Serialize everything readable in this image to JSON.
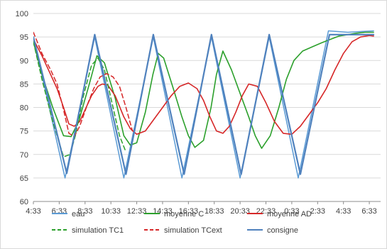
{
  "chart_data": {
    "type": "line",
    "title": "",
    "xlabel": "",
    "ylabel": "",
    "ylim": [
      60,
      100
    ],
    "yticks": [
      60,
      65,
      70,
      75,
      80,
      85,
      90,
      95,
      100
    ],
    "xlim": [
      0,
      2580
    ],
    "x_ticks": [
      {
        "x": 0,
        "label": "4:33"
      },
      {
        "x": 120,
        "label": "6:33"
      },
      {
        "x": 240,
        "label": "8:33"
      },
      {
        "x": 360,
        "label": "10:33"
      },
      {
        "x": 480,
        "label": "12:33"
      },
      {
        "x": 600,
        "label": "14:33"
      },
      {
        "x": 720,
        "label": "16:33"
      },
      {
        "x": 840,
        "label": "18:33"
      },
      {
        "x": 960,
        "label": "20:33"
      },
      {
        "x": 1080,
        "label": "22:33"
      },
      {
        "x": 1200,
        "label": "0:33"
      },
      {
        "x": 1320,
        "label": "2:33"
      },
      {
        "x": 1440,
        "label": "4:33"
      },
      {
        "x": 1560,
        "label": "6:33"
      }
    ],
    "grid": "horizontal",
    "legend_position": "bottom",
    "series": [
      {
        "name": "eau",
        "color": "#5b9bd5",
        "style": "solid",
        "width": 1.5,
        "x": [
          0,
          147,
          285,
          420,
          557,
          690,
          827,
          960,
          1095,
          1230,
          1370,
          1460,
          1530,
          1580
        ],
        "y": [
          95,
          65,
          95,
          65,
          95,
          65,
          95,
          65,
          95,
          65,
          96.3,
          96.0,
          96.2,
          96.3
        ]
      },
      {
        "name": "moyenne C",
        "color": "#2ca02c",
        "style": "solid",
        "width": 1.6,
        "x": [
          0,
          40,
          90,
          140,
          175,
          210,
          260,
          295,
          330,
          380,
          420,
          450,
          480,
          520,
          555,
          580,
          605,
          650,
          690,
          720,
          750,
          790,
          825,
          850,
          880,
          920,
          960,
          1000,
          1030,
          1060,
          1100,
          1140,
          1175,
          1210,
          1250,
          1300,
          1340,
          1380,
          1420,
          1460,
          1500,
          1540,
          1580
        ],
        "y": [
          94,
          87,
          80,
          74,
          73.8,
          77,
          85,
          91,
          89.5,
          82,
          74,
          72,
          72.5,
          79,
          87,
          91.5,
          90.5,
          84,
          78,
          74,
          71.5,
          73,
          80,
          87,
          92,
          88,
          83,
          78,
          74,
          71.3,
          74,
          80,
          86,
          90,
          92,
          93,
          93.8,
          94.5,
          95.2,
          95.5,
          95.8,
          96,
          96
        ]
      },
      {
        "name": "moyenne AD",
        "color": "#d62728",
        "style": "solid",
        "width": 1.6,
        "x": [
          0,
          40,
          80,
          110,
          140,
          165,
          190,
          215,
          240,
          270,
          300,
          320,
          345,
          380,
          420,
          450,
          480,
          520,
          560,
          600,
          640,
          680,
          720,
          760,
          790,
          820,
          850,
          880,
          910,
          940,
          970,
          1000,
          1040,
          1080,
          1120,
          1160,
          1200,
          1240,
          1280,
          1320,
          1360,
          1400,
          1440,
          1480,
          1520,
          1560,
          1580
        ],
        "y": [
          94.5,
          91,
          87,
          84,
          80,
          76.5,
          76,
          77,
          79.5,
          82.5,
          84.5,
          85,
          84.8,
          82.5,
          78,
          75.5,
          74.3,
          75,
          77.5,
          80,
          82.5,
          84.5,
          85.2,
          84,
          81.5,
          78,
          75,
          74.5,
          76,
          79,
          82.5,
          85,
          84.5,
          81,
          77,
          74.5,
          74.3,
          76,
          78.5,
          81,
          84,
          88,
          91.5,
          94,
          95,
          95.3,
          95.2
        ]
      },
      {
        "name": "simulation TC1",
        "color": "#2ca02c",
        "style": "dashed",
        "width": 1.5,
        "x": [
          0,
          40,
          90,
          140,
          170,
          195,
          230,
          270,
          300,
          330,
          370,
          400,
          430
        ],
        "y": [
          94,
          86,
          77,
          69.5,
          70,
          74,
          82,
          89,
          90.5,
          88,
          80,
          74,
          70.5
        ]
      },
      {
        "name": "simulation TCext",
        "color": "#d62728",
        "style": "dashed",
        "width": 1.5,
        "x": [
          0,
          40,
          80,
          110,
          140,
          165,
          190,
          215,
          250,
          280,
          310,
          340,
          370,
          400,
          430,
          460
        ],
        "y": [
          96,
          91.5,
          88,
          85,
          79.5,
          74.5,
          73.8,
          76,
          80.5,
          84,
          86.5,
          87.2,
          86.5,
          84.5,
          80,
          75
        ]
      },
      {
        "name": "consigne",
        "color": "#4f81bd",
        "style": "solid",
        "width": 2.2,
        "x": [
          0,
          155,
          285,
          430,
          557,
          700,
          827,
          965,
          1095,
          1240,
          1375,
          1580
        ],
        "y": [
          95,
          66,
          95.5,
          65.8,
          95.5,
          65.8,
          95.5,
          65.8,
          95.5,
          65.8,
          95.5,
          95.5
        ]
      }
    ],
    "legend": [
      {
        "label": "eau",
        "color": "#5b9bd5",
        "style": "solid"
      },
      {
        "label": "moyenne C",
        "color": "#2ca02c",
        "style": "solid"
      },
      {
        "label": "moyenne AD",
        "color": "#d62728",
        "style": "solid"
      },
      {
        "label": "simulation TC1",
        "color": "#2ca02c",
        "style": "dashed"
      },
      {
        "label": "simulation TCext",
        "color": "#d62728",
        "style": "dashed"
      },
      {
        "label": "consigne",
        "color": "#4f81bd",
        "style": "solid"
      }
    ]
  }
}
